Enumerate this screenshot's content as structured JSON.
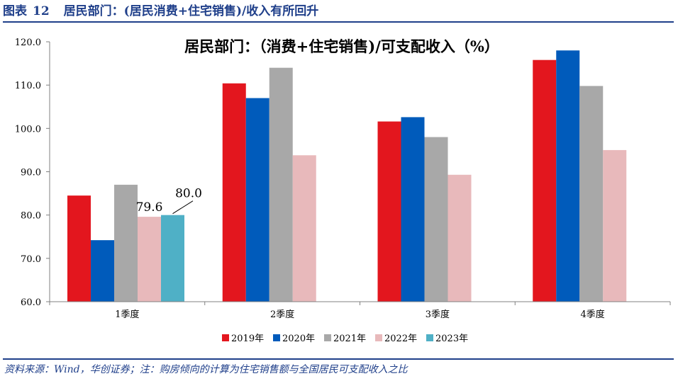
{
  "header": {
    "figure_label": "图表",
    "figure_number": "12",
    "figure_title": "居民部门：(居民消费+住宅销售)/收入有所回升"
  },
  "footer": {
    "source": "资料来源：Wind，华创证券；注：购房倾向的计算为住宅销售额与全国居民可支配收入之比"
  },
  "chart_data": {
    "type": "bar",
    "title": "居民部门：（消费+住宅销售)/可支配收入（%）",
    "xlabel": "",
    "ylabel": "",
    "categories": [
      "1季度",
      "2季度",
      "3季度",
      "4季度"
    ],
    "ylim": [
      60,
      120
    ],
    "yticks": [
      "60.0",
      "70.0",
      "80.0",
      "90.0",
      "100.0",
      "110.0",
      "120.0"
    ],
    "grid": false,
    "legend_position": "bottom",
    "series": [
      {
        "name": "2019年",
        "color": "#e3161e",
        "values": [
          84.5,
          110.4,
          101.6,
          115.8
        ]
      },
      {
        "name": "2020年",
        "color": "#005bbb",
        "values": [
          74.2,
          107.0,
          102.6,
          118.0
        ]
      },
      {
        "name": "2021年",
        "color": "#a8a8a8",
        "values": [
          87.0,
          114.0,
          98.0,
          109.8
        ]
      },
      {
        "name": "2022年",
        "color": "#e8b9bb",
        "values": [
          79.6,
          93.8,
          89.3,
          95.0
        ]
      },
      {
        "name": "2023年",
        "color": "#4fb0c6",
        "values": [
          80.0,
          null,
          null,
          null
        ]
      }
    ],
    "annotations": [
      {
        "series": "2022年",
        "category": "1季度",
        "text": "79.6"
      },
      {
        "series": "2023年",
        "category": "1季度",
        "text": "80.0"
      }
    ]
  }
}
